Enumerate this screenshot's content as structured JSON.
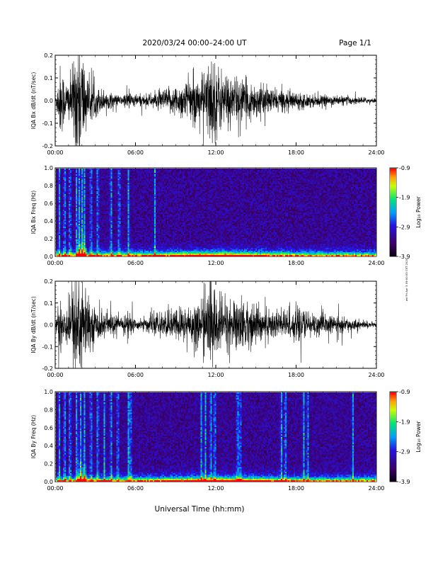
{
  "header": {
    "title": "2020/03/24  00:00–24:00 UT",
    "page": "Page 1/1"
  },
  "side_note": "wd Fri Apr 3 09:00:03 CST 2020",
  "x_axis": {
    "label": "Universal Time (hh:mm)",
    "ticks": [
      "00:00",
      "06:00",
      "12:00",
      "18:00",
      "24:00"
    ],
    "range_hours": [
      0,
      24
    ]
  },
  "colorbar": {
    "label": "Log₁₀ Power",
    "ticks": [
      "-0.9",
      "-1.9",
      "-2.9",
      "-3.9"
    ],
    "range": [
      -3.9,
      -0.9
    ]
  },
  "chart_data": [
    {
      "type": "line",
      "ylabel": "IQA Bx dB/dt (nT/sec)",
      "ylim": [
        -0.2,
        0.2
      ],
      "yticks": [
        "0.2",
        "0.1",
        "0.0",
        "-0.1",
        "-0.2"
      ],
      "envelope": {
        "hours": [
          0,
          0.4,
          0.8,
          1.2,
          1.6,
          1.8,
          2.0,
          2.4,
          3.0,
          4.0,
          5.0,
          5.4,
          6.0,
          7.0,
          8.0,
          9.0,
          10.0,
          11.0,
          11.7,
          12.0,
          12.5,
          13.5,
          14.5,
          16.0,
          18.0,
          20.0,
          22.0,
          24.0
        ],
        "amplitude": [
          0.01,
          0.18,
          0.09,
          0.12,
          0.3,
          0.3,
          0.28,
          0.1,
          0.07,
          0.04,
          0.02,
          0.05,
          0.03,
          0.03,
          0.05,
          0.07,
          0.1,
          0.12,
          0.22,
          0.18,
          0.14,
          0.11,
          0.09,
          0.06,
          0.04,
          0.025,
          0.02,
          0.01
        ]
      }
    },
    {
      "type": "heatmap",
      "ylabel": "IQA Bx Freq (Hz)",
      "ylim": [
        0,
        1.0
      ],
      "yticks": [
        "1.0",
        "0.8",
        "0.6",
        "0.4",
        "0.2",
        "0.0"
      ],
      "broadband_hours": [
        0.2,
        0.6,
        1.0,
        1.5,
        1.7,
        1.9,
        2.1,
        2.6,
        3.1,
        4.1,
        4.7,
        5.4,
        7.4
      ],
      "colorbar_range": [
        -3.9,
        -0.9
      ]
    },
    {
      "type": "line",
      "ylabel": "IQA By dB/dt (nT/sec)",
      "ylim": [
        -0.2,
        0.2
      ],
      "yticks": [
        "0.2",
        "0.1",
        "0.0",
        "-0.1",
        "-0.2"
      ],
      "envelope": {
        "hours": [
          0,
          0.4,
          0.8,
          1.2,
          1.6,
          1.8,
          2.0,
          2.4,
          3.0,
          4.0,
          5.0,
          5.4,
          6.0,
          7.0,
          8.0,
          9.0,
          10.0,
          11.0,
          11.8,
          12.0,
          12.5,
          13.5,
          14.5,
          16.0,
          18.0,
          20.0,
          22.0,
          24.0
        ],
        "amplitude": [
          0.02,
          0.16,
          0.1,
          0.14,
          0.3,
          0.3,
          0.3,
          0.12,
          0.08,
          0.06,
          0.03,
          0.09,
          0.02,
          0.04,
          0.06,
          0.08,
          0.1,
          0.12,
          0.22,
          0.18,
          0.12,
          0.13,
          0.11,
          0.08,
          0.08,
          0.05,
          0.03,
          0.01
        ]
      }
    },
    {
      "type": "heatmap",
      "ylabel": "IQA By Freq (Hz)",
      "ylim": [
        0,
        1.0
      ],
      "yticks": [
        "1.0",
        "0.8",
        "0.6",
        "0.4",
        "0.2",
        "0.0"
      ],
      "broadband_hours": [
        0.2,
        0.6,
        1.0,
        1.5,
        1.8,
        2.1,
        2.6,
        3.1,
        3.6,
        4.1,
        4.6,
        5.4,
        5.55,
        10.9,
        11.2,
        11.6,
        11.9,
        13.6,
        13.8,
        16.9,
        17.2,
        18.6,
        18.9,
        22.3
      ],
      "colorbar_range": [
        -3.9,
        -0.9
      ]
    }
  ]
}
